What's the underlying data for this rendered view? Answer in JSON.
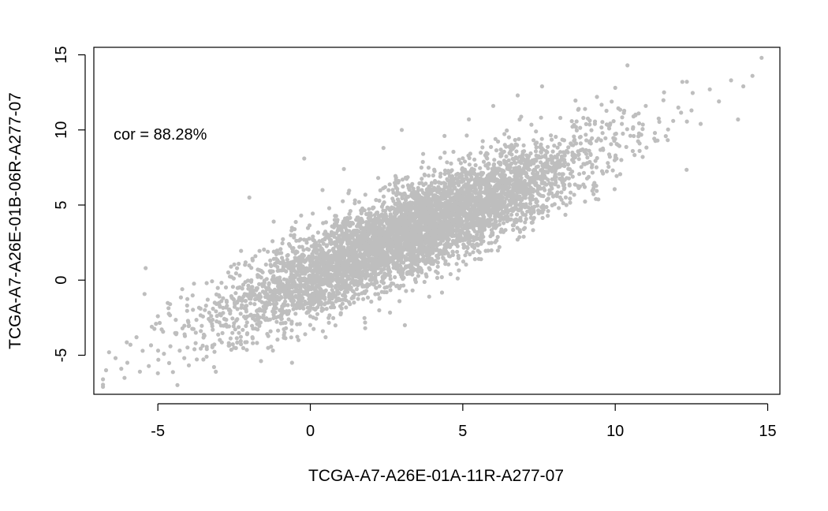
{
  "chart_data": {
    "type": "scatter",
    "xlabel": "TCGA-A7-A26E-01A-11R-A277-07",
    "ylabel": "TCGA-A7-A26E-01B-06R-A277-07",
    "annotation": "cor = 88.28%",
    "xlim": [
      -7.1,
      15.4
    ],
    "ylim": [
      -7.6,
      15.5
    ],
    "x_ticks": [
      -5,
      0,
      5,
      10,
      15
    ],
    "y_ticks": [
      -5,
      0,
      5,
      10,
      15
    ],
    "x_tick_labels": [
      "-5",
      "0",
      "5",
      "10",
      "15"
    ],
    "y_tick_labels": [
      "-5",
      "0",
      "5",
      "10",
      "15"
    ],
    "grid": false,
    "point_color": "#bebebe",
    "correlation": 0.8828,
    "points": [
      [
        -6.8,
        -6.6
      ],
      [
        -6.7,
        -6.0
      ],
      [
        -6.6,
        -4.8
      ],
      [
        -6.2,
        -5.9
      ],
      [
        -6.0,
        -5.5
      ],
      [
        -5.9,
        -4.3
      ],
      [
        -5.7,
        -3.8
      ],
      [
        -5.5,
        -4.7
      ],
      [
        -5.4,
        0.8
      ],
      [
        -5.2,
        -3.1
      ],
      [
        -5.0,
        -6.2
      ],
      [
        -5.0,
        -2.4
      ],
      [
        -4.8,
        -4.9
      ],
      [
        -4.6,
        -1.6
      ],
      [
        -4.4,
        -3.6
      ],
      [
        -4.2,
        -0.6
      ],
      [
        -4.0,
        -2.8
      ],
      [
        -3.8,
        -4.6
      ],
      [
        -3.6,
        -1.9
      ],
      [
        -3.4,
        -0.2
      ],
      [
        -3.2,
        -3.3
      ],
      [
        -3.1,
        -6.1
      ],
      [
        -3.0,
        -1.0
      ],
      [
        -2.8,
        -2.6
      ],
      [
        -2.6,
        0.9
      ],
      [
        -2.5,
        -4.5
      ],
      [
        -2.4,
        -1.5
      ],
      [
        -2.2,
        -0.3
      ],
      [
        -2.0,
        5.5
      ],
      [
        -1.9,
        -3.8
      ],
      [
        -1.8,
        1.6
      ],
      [
        -1.5,
        -2.1
      ],
      [
        -1.3,
        0.5
      ],
      [
        -1.2,
        3.9
      ],
      [
        -1.0,
        -1.2
      ],
      [
        -0.8,
        -3.2
      ],
      [
        -0.7,
        2.4
      ],
      [
        -0.6,
        -5.5
      ],
      [
        -0.5,
        0.2
      ],
      [
        -0.3,
        4.3
      ],
      [
        -0.2,
        8.1
      ],
      [
        0.0,
        -2.4
      ],
      [
        0.2,
        1.8
      ],
      [
        0.4,
        6.0
      ],
      [
        0.5,
        -3.8
      ],
      [
        0.7,
        -0.4
      ],
      [
        0.9,
        3.6
      ],
      [
        1.1,
        7.4
      ],
      [
        1.3,
        -1.6
      ],
      [
        1.5,
        2.2
      ],
      [
        1.6,
        5.2
      ],
      [
        1.8,
        -3.2
      ],
      [
        2.0,
        0.7
      ],
      [
        2.2,
        4.5
      ],
      [
        2.4,
        8.8
      ],
      [
        2.5,
        -0.8
      ],
      [
        2.7,
        3.1
      ],
      [
        2.9,
        6.6
      ],
      [
        3.0,
        10.0
      ],
      [
        3.1,
        -3.0
      ],
      [
        3.3,
        1.5
      ],
      [
        3.5,
        5.1
      ],
      [
        3.7,
        8.4
      ],
      [
        3.9,
        -1.1
      ],
      [
        4.0,
        2.8
      ],
      [
        4.2,
        6.2
      ],
      [
        4.4,
        9.6
      ],
      [
        4.6,
        0.4
      ],
      [
        4.8,
        3.9
      ],
      [
        5.0,
        7.2
      ],
      [
        5.2,
        10.7
      ],
      [
        5.4,
        1.4
      ],
      [
        5.6,
        4.8
      ],
      [
        5.8,
        8.1
      ],
      [
        6.0,
        11.6
      ],
      [
        6.2,
        2.2
      ],
      [
        6.4,
        5.7
      ],
      [
        6.6,
        9.0
      ],
      [
        6.8,
        12.3
      ],
      [
        7.0,
        3.4
      ],
      [
        7.2,
        6.6
      ],
      [
        7.4,
        9.9
      ],
      [
        7.6,
        12.9
      ],
      [
        7.8,
        4.6
      ],
      [
        8.0,
        7.5
      ],
      [
        8.2,
        10.8
      ],
      [
        8.4,
        5.0
      ],
      [
        8.6,
        8.3
      ],
      [
        8.8,
        11.4
      ],
      [
        9.0,
        6.2
      ],
      [
        9.2,
        9.1
      ],
      [
        9.4,
        12.2
      ],
      [
        9.6,
        7.1
      ],
      [
        9.8,
        10.1
      ],
      [
        10.0,
        12.8
      ],
      [
        10.2,
        8.0
      ],
      [
        10.4,
        14.3
      ],
      [
        10.6,
        10.9
      ],
      [
        10.8,
        8.6
      ],
      [
        11.0,
        11.6
      ],
      [
        11.3,
        9.8
      ],
      [
        11.6,
        12.5
      ],
      [
        11.9,
        10.6
      ],
      [
        12.2,
        13.2
      ],
      [
        12.5,
        11.3
      ],
      [
        12.8,
        10.4
      ],
      [
        13.1,
        12.7
      ],
      [
        13.4,
        11.9
      ],
      [
        13.8,
        13.3
      ],
      [
        14.2,
        12.9
      ],
      [
        14.5,
        13.6
      ],
      [
        14.8,
        14.8
      ]
    ]
  }
}
